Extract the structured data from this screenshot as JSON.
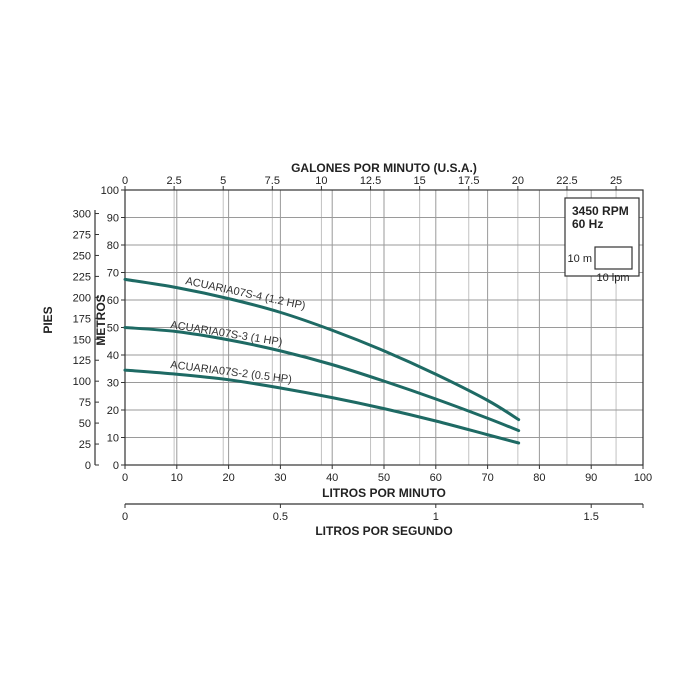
{
  "chart_data": {
    "type": "line",
    "top_axis": {
      "label": "GALONES POR MINUTO (U.S.A.)",
      "ticks": [
        "0",
        "2.5",
        "5",
        "7.5",
        "10",
        "12.5",
        "15",
        "17.5",
        "20",
        "22.5",
        "25"
      ]
    },
    "bottom_axis": {
      "label": "LITROS POR MINUTO",
      "ticks": [
        "0",
        "10",
        "20",
        "30",
        "40",
        "50",
        "60",
        "70",
        "80",
        "90",
        "100"
      ],
      "xlim": [
        0,
        100
      ]
    },
    "second_bottom_axis": {
      "label": "LITROS POR SEGUNDO",
      "ticks": [
        "0",
        "0.5",
        "1",
        "1.5"
      ],
      "tick_values": [
        0,
        0.5,
        1,
        1.5
      ]
    },
    "left_axis_metros": {
      "label": "METROS",
      "ticks": [
        "0",
        "10",
        "20",
        "30",
        "40",
        "50",
        "60",
        "70",
        "80",
        "90",
        "100"
      ],
      "ylim": [
        0,
        100
      ]
    },
    "left_axis_pies": {
      "label": "PIES",
      "ticks": [
        "0",
        "25",
        "50",
        "75",
        "100",
        "125",
        "150",
        "175",
        "200",
        "225",
        "250",
        "275",
        "300"
      ],
      "tick_values": [
        0,
        25,
        50,
        75,
        100,
        125,
        150,
        175,
        200,
        225,
        250,
        275,
        300
      ]
    },
    "series": [
      {
        "name": "ACUARIA07S-4 (1.2 HP)",
        "color": "#1e6a64",
        "x": [
          0,
          10,
          20,
          30,
          40,
          50,
          60,
          70,
          76
        ],
        "y": [
          67.5,
          64.5,
          60.5,
          55.5,
          49,
          41.5,
          33,
          23.5,
          16.5
        ]
      },
      {
        "name": "ACUARIA07S-3 (1 HP)",
        "color": "#1e6a64",
        "x": [
          0,
          10,
          20,
          30,
          40,
          50,
          60,
          70,
          76
        ],
        "y": [
          50,
          48.5,
          45.5,
          41.5,
          36.5,
          30.5,
          24,
          17,
          12.5
        ]
      },
      {
        "name": "ACUARIA07S-2 (0.5 HP)",
        "color": "#1e6a64",
        "x": [
          0,
          10,
          20,
          30,
          40,
          50,
          60,
          70,
          76
        ],
        "y": [
          34.5,
          33,
          31,
          28,
          24.5,
          20.5,
          16,
          11,
          8
        ]
      }
    ],
    "legend_box": {
      "line1": "3450 RPM",
      "line2": "60 Hz",
      "scale_y": "10 m",
      "scale_x": "10 lpm"
    },
    "grid": true
  }
}
